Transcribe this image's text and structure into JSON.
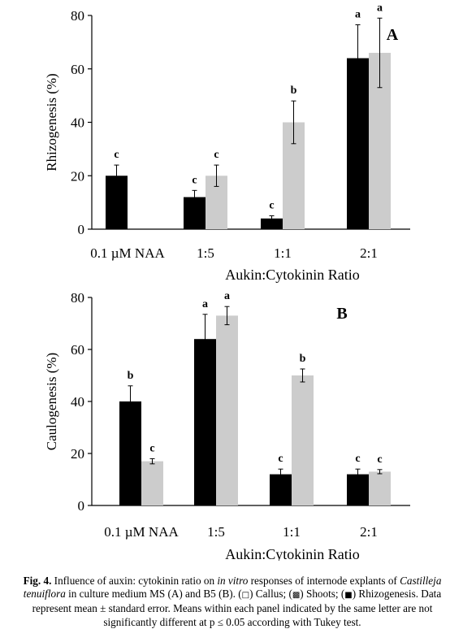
{
  "chart_data": [
    {
      "type": "bar",
      "panel_letter": "A",
      "ylabel": "Rhizogenesis (%)",
      "xlabel": "Aukin:Cytokinin Ratio",
      "ylim": [
        0,
        80
      ],
      "yticks": [
        0,
        20,
        40,
        60,
        80
      ],
      "categories": [
        "0.1 µM NAA",
        "1:5",
        "1:1",
        "2:1"
      ],
      "series": [
        {
          "color": "#000000",
          "values": [
            20,
            12,
            4,
            64
          ],
          "errors": [
            4,
            2.5,
            1,
            12.5
          ],
          "letters": [
            "c",
            "c",
            "c",
            "a"
          ]
        },
        {
          "color": "#cccccc",
          "values": [
            null,
            20,
            40,
            66
          ],
          "errors": [
            null,
            4,
            8,
            13
          ],
          "letters": [
            null,
            "c",
            "b",
            "a"
          ]
        }
      ]
    },
    {
      "type": "bar",
      "panel_letter": "B",
      "ylabel": "Caulogenesis (%)",
      "xlabel": "Aukin:Cytokinin Ratio",
      "ylim": [
        0,
        80
      ],
      "yticks": [
        0,
        20,
        40,
        60,
        80
      ],
      "categories": [
        "0.1 µM NAA",
        "1:5",
        "1:1",
        "2:1"
      ],
      "series": [
        {
          "color": "#000000",
          "values": [
            40,
            64,
            12,
            12
          ],
          "errors": [
            6,
            9.5,
            2,
            2
          ],
          "letters": [
            "b",
            "a",
            "c",
            "c"
          ]
        },
        {
          "color": "#cccccc",
          "values": [
            17,
            73,
            50,
            13
          ],
          "errors": [
            1,
            3.5,
            2.5,
            0.8
          ],
          "letters": [
            "c",
            "a",
            "b",
            "c"
          ]
        }
      ]
    }
  ],
  "caption": {
    "label": "Fig. 4.",
    "t1": " Influence of auxin: cytokinin ratio on ",
    "i1": "in vitro",
    "t2": " responses of internode explants of ",
    "i2": "Castilleja tenuiflora",
    "t3": " in culture medium MS (A) and B5 (B). (",
    "sym_callus": "□",
    "t4": ") Callus; (",
    "sym_shoots": "▩",
    "t5": ") Shoots; (",
    "sym_rhizo": "■",
    "t6": ") Rhizogenesis. Data represent mean ± standard error. Means within each panel indicated by the same letter are not significantly different at p ≤ 0.05 according with Tukey test."
  }
}
